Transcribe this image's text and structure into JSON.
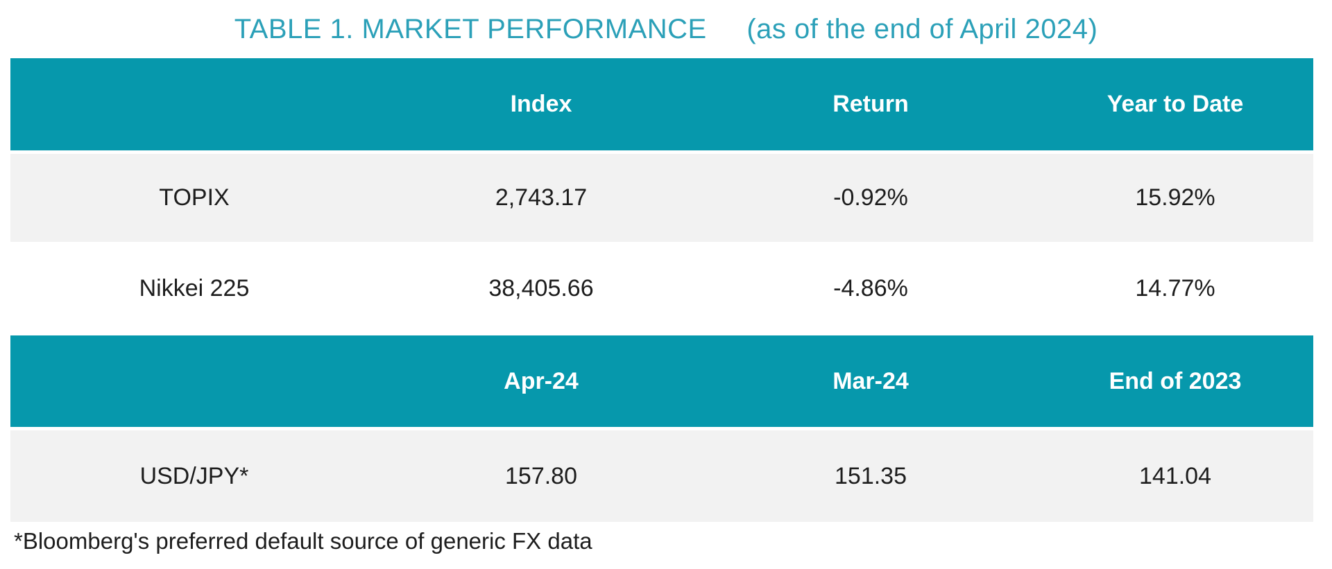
{
  "header": {
    "title_main": "TABLE 1. MARKET PERFORMANCE",
    "title_note": "(as of the end of April 2024)"
  },
  "colors": {
    "header_band_teal": "#0698AC",
    "title_teal": "#2BA0B8",
    "row_gray": "#F2F2F2",
    "body_text": "#1D1D1D",
    "header_text": "#FFFFFF"
  },
  "chart_data": [
    {
      "type": "table",
      "title": "TABLE 1. MARKET PERFORMANCE (as of the end of April 2024)",
      "columns": [
        "",
        "Index",
        "Return",
        "Year to Date"
      ],
      "rows": [
        [
          "TOPIX",
          "2,743.17",
          "-0.92%",
          "15.92%"
        ],
        [
          "Nikkei 225",
          "38,405.66",
          "-4.86%",
          "14.77%"
        ]
      ]
    },
    {
      "type": "table",
      "title": "FX section",
      "columns": [
        "",
        "Apr-24",
        "Mar-24",
        "End of 2023"
      ],
      "rows": [
        [
          "USD/JPY*",
          "157.80",
          "151.35",
          "141.04"
        ]
      ]
    }
  ],
  "footnote": {
    "text": "*Bloomberg's preferred default source of generic FX data"
  }
}
